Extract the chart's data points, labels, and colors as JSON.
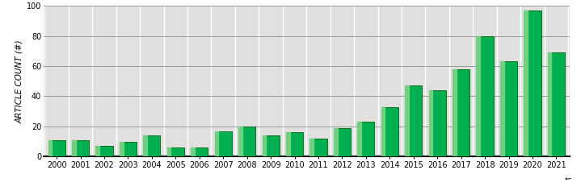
{
  "years": [
    2000,
    2001,
    2002,
    2003,
    2004,
    2005,
    2006,
    2007,
    2008,
    2009,
    2010,
    2011,
    2012,
    2013,
    2014,
    2015,
    2016,
    2017,
    2018,
    2019,
    2020,
    2021
  ],
  "values": [
    11,
    11,
    7,
    10,
    14,
    6,
    6,
    17,
    20,
    14,
    16,
    12,
    19,
    23,
    33,
    47,
    44,
    58,
    80,
    63,
    97,
    69
  ],
  "bar_color_main": "#00b050",
  "bar_color_edge": "#006400",
  "bar_color_light": "#70d080",
  "background_color": "#e0e0e0",
  "grid_color_h": "#999999",
  "grid_color_v": "#ffffff",
  "ylabel": "ARTICLE COUNT (#)",
  "ylim": [
    0,
    100
  ],
  "yticks": [
    0,
    20,
    40,
    60,
    80,
    100
  ],
  "ylabel_fontsize": 7.5,
  "tick_fontsize": 7.0,
  "fig_width": 7.19,
  "fig_height": 2.37,
  "dpi": 100
}
